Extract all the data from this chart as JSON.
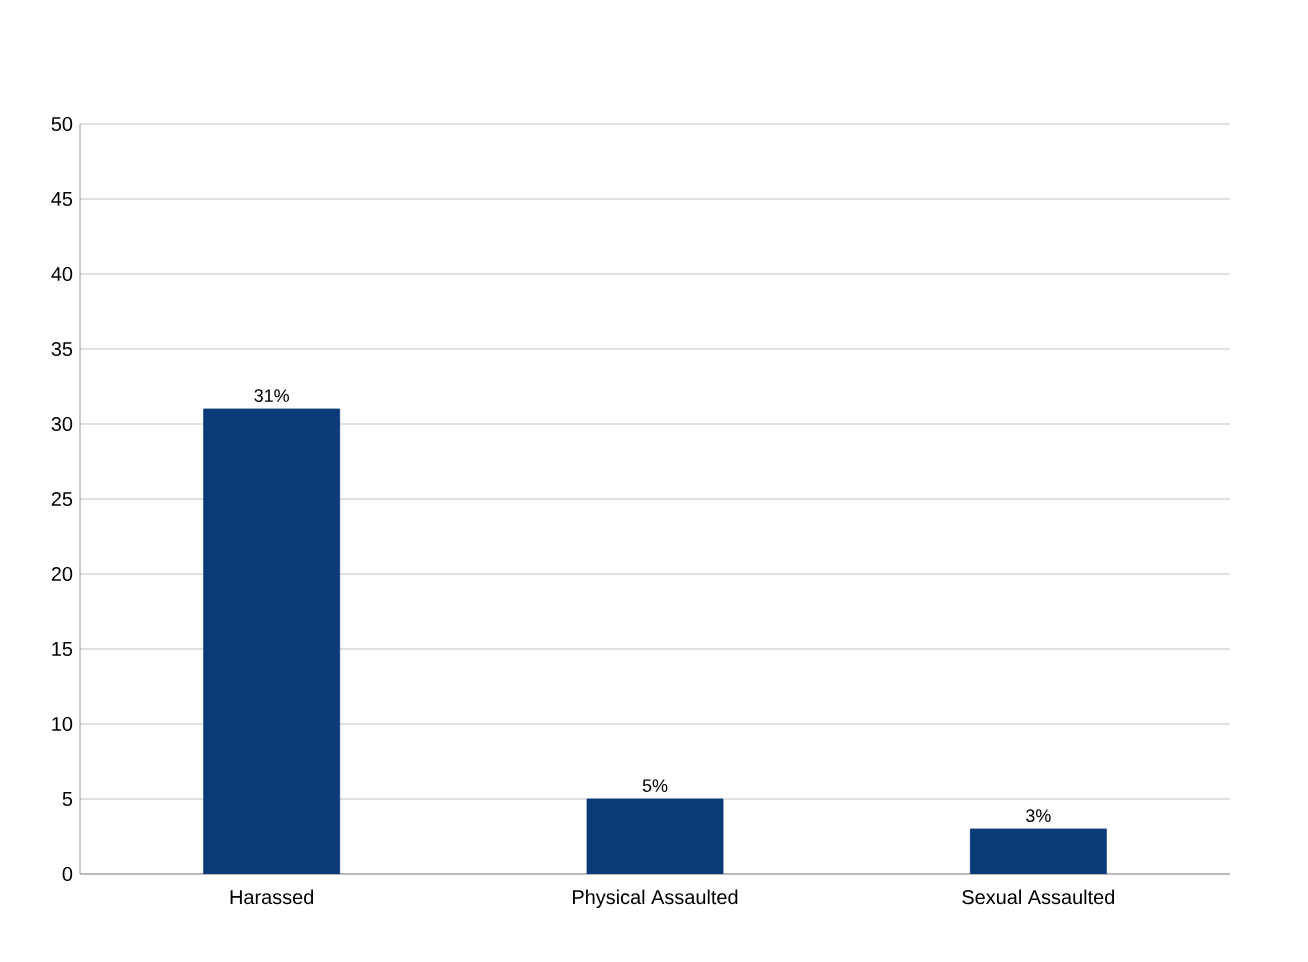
{
  "chart_data": {
    "type": "bar",
    "categories": [
      "Harassed",
      "Physical Assaulted",
      "Sexual Assaulted"
    ],
    "values": [
      31,
      5,
      3
    ],
    "value_labels": [
      "31%",
      "5%",
      "3%"
    ],
    "color": "#0b3a79",
    "ylim": [
      0,
      50
    ],
    "yticks": [
      0,
      5,
      10,
      15,
      20,
      25,
      30,
      35,
      40,
      45,
      50
    ],
    "grid": "y"
  }
}
